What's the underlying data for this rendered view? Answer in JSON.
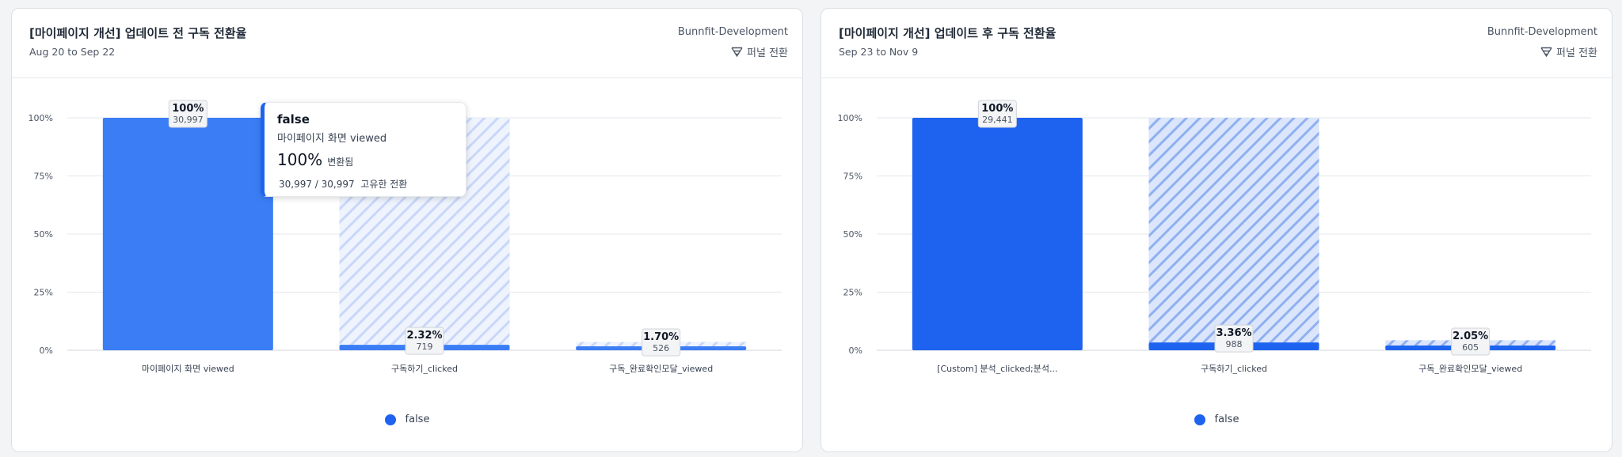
{
  "cards": [
    {
      "title": "[마이페이지 개선] 업데이트 전 구독 전환율",
      "date_range": "Aug 20 to Sep 22",
      "project": "Bunnfit-Development",
      "funnel_type_label": "퍼널 전환",
      "funnel_icon": "funnel-icon"
    },
    {
      "title": "[마이페이지 개선] 업데이트 후 구독 전환율",
      "date_range": "Sep 23 to Nov 9",
      "project": "Bunnfit-Development",
      "funnel_type_label": "퍼널 전환",
      "funnel_icon": "funnel-icon"
    }
  ],
  "tooltip": {
    "title": "false",
    "step": "마이페이지 화면 viewed",
    "rate": "100%",
    "rate_label": "변환됨",
    "count": "30,997 / 30,997",
    "count_label": "고유한 전환"
  },
  "chart_data": [
    {
      "type": "bar",
      "ylim": [
        0,
        100
      ],
      "yticks": [
        "100%",
        "75%",
        "50%",
        "25%",
        "0%"
      ],
      "categories": [
        "마이페이지 화면 viewed",
        "구독하기_clicked",
        "구독_완료확인모달_viewed"
      ],
      "series": [
        {
          "name": "false",
          "values": [
            100,
            2.32,
            1.7
          ],
          "percent_labels": [
            "100%",
            "2.32%",
            "1.70%"
          ],
          "counts": [
            "30,997",
            "719",
            "526"
          ]
        }
      ],
      "colors": {
        "bar": "#3b7df5",
        "dropoff_stripe": "#c8d7f8",
        "dropoff_bg": "#eef3fd",
        "legend": "#1e63f0"
      },
      "legend_position": "bottom"
    },
    {
      "type": "bar",
      "ylim": [
        0,
        100
      ],
      "yticks": [
        "100%",
        "75%",
        "50%",
        "25%",
        "0%"
      ],
      "categories": [
        "[Custom] 분석_clicked;분석...",
        "구독하기_clicked",
        "구독_완료확인모달_viewed"
      ],
      "series": [
        {
          "name": "false",
          "values": [
            100,
            3.36,
            2.05
          ],
          "percent_labels": [
            "100%",
            "3.36%",
            "2.05%"
          ],
          "counts": [
            "29,441",
            "988",
            "605"
          ]
        }
      ],
      "colors": {
        "bar": "#1e63f0",
        "dropoff_stripe": "#8fb0f0",
        "dropoff_bg": "#dbe5fb",
        "legend": "#1e63f0"
      },
      "legend_position": "bottom"
    }
  ]
}
